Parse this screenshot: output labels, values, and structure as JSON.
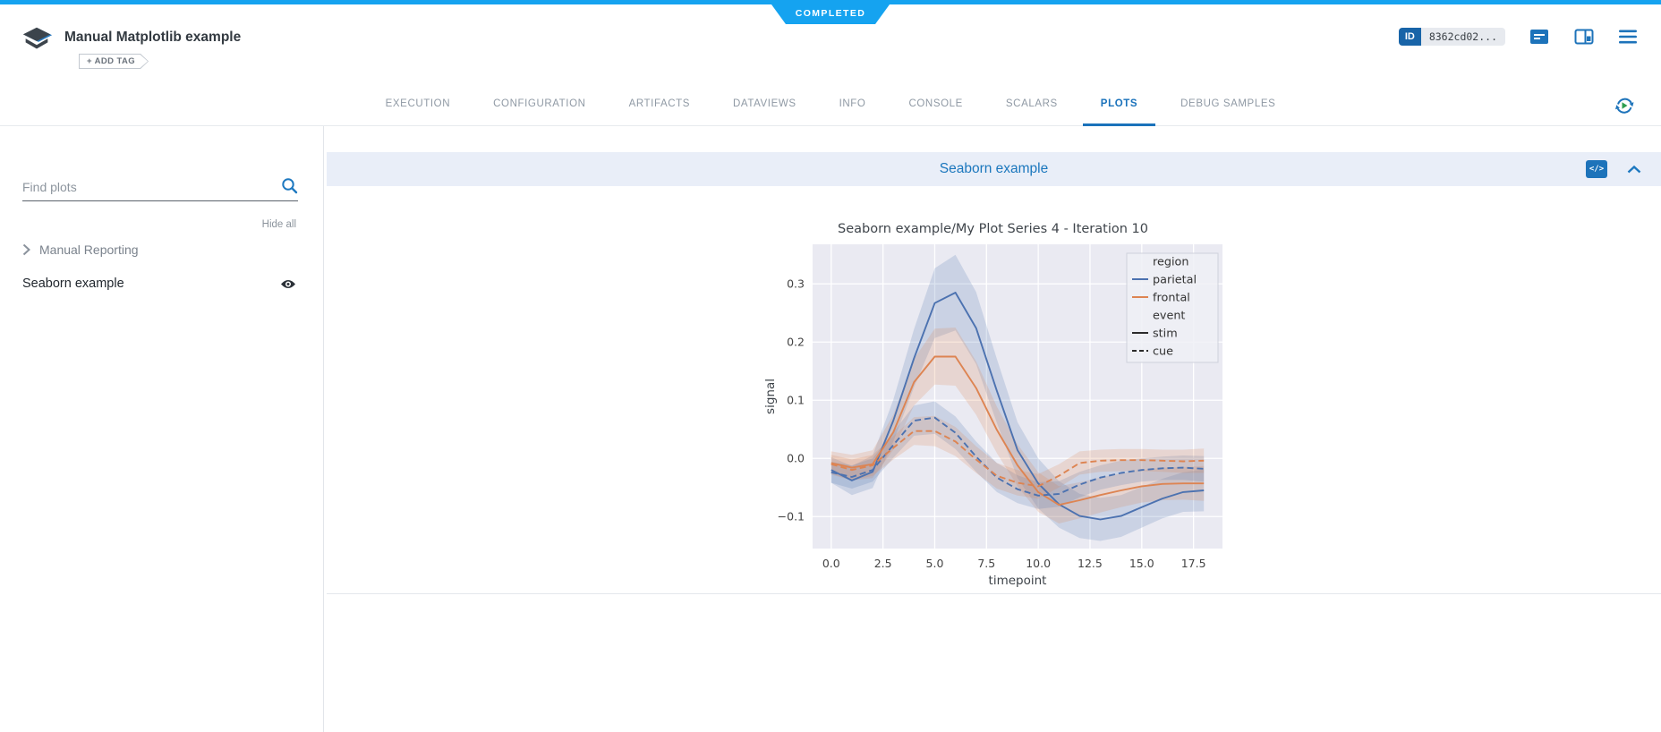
{
  "status_banner": {
    "label": "COMPLETED",
    "color": "#15a3f0"
  },
  "header": {
    "title": "Manual Matplotlib example",
    "add_tag_label": "+ ADD TAG",
    "id_badge": {
      "label": "ID",
      "value": "8362cd02..."
    }
  },
  "tabs": {
    "items": [
      "EXECUTION",
      "CONFIGURATION",
      "ARTIFACTS",
      "DATAVIEWS",
      "INFO",
      "CONSOLE",
      "SCALARS",
      "PLOTS",
      "DEBUG SAMPLES"
    ],
    "active": "PLOTS"
  },
  "sidebar": {
    "search_placeholder": "Find plots",
    "hide_all_label": "Hide all",
    "groups": [
      {
        "label": "Manual Reporting"
      }
    ],
    "items": [
      {
        "label": "Seaborn example",
        "visible": true
      }
    ]
  },
  "plot_section": {
    "title": "Seaborn example"
  },
  "icons": {
    "code_glyph": "</>"
  },
  "colors": {
    "accent_blue": "#1d73ba",
    "status_completed": "#15a3f0",
    "active_tab": "#1a72bb"
  },
  "chart_data": {
    "type": "line",
    "title": "Seaborn example/My Plot Series 4 - Iteration 10",
    "xlabel": "timepoint",
    "ylabel": "signal",
    "background": "#eaeaf2",
    "grid": true,
    "x_ticks": [
      0.0,
      2.5,
      5.0,
      7.5,
      10.0,
      12.5,
      15.0,
      17.5
    ],
    "y_ticks": [
      -0.1,
      0.0,
      0.1,
      0.2,
      0.3
    ],
    "xlim": [
      -0.9,
      18.9
    ],
    "ylim": [
      -0.155,
      0.368
    ],
    "x": [
      0,
      1,
      2,
      3,
      4,
      5,
      6,
      7,
      8,
      9,
      10,
      11,
      12,
      13,
      14,
      15,
      16,
      17,
      18
    ],
    "series": [
      {
        "name": "parietal-stim",
        "color": "#4c72b0",
        "dash": "solid",
        "values": [
          -0.02,
          -0.038,
          -0.023,
          0.065,
          0.172,
          0.267,
          0.285,
          0.224,
          0.116,
          0.014,
          -0.043,
          -0.079,
          -0.099,
          -0.105,
          -0.099,
          -0.084,
          -0.069,
          -0.058,
          -0.055
        ],
        "band": [
          0.022,
          0.025,
          0.028,
          0.036,
          0.05,
          0.06,
          0.065,
          0.062,
          0.055,
          0.048,
          0.043,
          0.04,
          0.038,
          0.037,
          0.036,
          0.035,
          0.034,
          0.034,
          0.036
        ]
      },
      {
        "name": "frontal-stim",
        "color": "#dd8452",
        "dash": "solid",
        "values": [
          -0.008,
          -0.016,
          -0.01,
          0.045,
          0.131,
          0.175,
          0.175,
          0.121,
          0.049,
          -0.012,
          -0.058,
          -0.08,
          -0.072,
          -0.063,
          -0.055,
          -0.048,
          -0.044,
          -0.043,
          -0.043
        ],
        "band": [
          0.02,
          0.022,
          0.024,
          0.03,
          0.04,
          0.048,
          0.05,
          0.046,
          0.04,
          0.036,
          0.034,
          0.032,
          0.031,
          0.03,
          0.029,
          0.028,
          0.028,
          0.028,
          0.03
        ]
      },
      {
        "name": "parietal-cue",
        "color": "#4c72b0",
        "dash": "dashed",
        "values": [
          -0.024,
          -0.032,
          -0.02,
          0.023,
          0.065,
          0.07,
          0.044,
          0.003,
          -0.033,
          -0.053,
          -0.064,
          -0.061,
          -0.045,
          -0.033,
          -0.025,
          -0.02,
          -0.017,
          -0.016,
          -0.018
        ],
        "band": [
          0.018,
          0.02,
          0.02,
          0.022,
          0.026,
          0.028,
          0.028,
          0.026,
          0.025,
          0.024,
          0.023,
          0.022,
          0.022,
          0.021,
          0.021,
          0.02,
          0.02,
          0.021,
          0.022
        ]
      },
      {
        "name": "frontal-cue",
        "color": "#dd8452",
        "dash": "dashed",
        "values": [
          -0.01,
          -0.02,
          -0.012,
          0.018,
          0.047,
          0.047,
          0.029,
          -0.002,
          -0.03,
          -0.042,
          -0.048,
          -0.03,
          -0.008,
          -0.004,
          -0.003,
          -0.003,
          -0.004,
          -0.005,
          -0.004
        ],
        "band": [
          0.016,
          0.018,
          0.018,
          0.02,
          0.024,
          0.026,
          0.025,
          0.023,
          0.022,
          0.022,
          0.021,
          0.02,
          0.02,
          0.019,
          0.019,
          0.019,
          0.019,
          0.02,
          0.021
        ]
      }
    ],
    "legend": {
      "position": "upper right",
      "entries": [
        {
          "label": "region",
          "type": "header"
        },
        {
          "label": "parietal",
          "type": "line",
          "color": "#4c72b0",
          "dash": "solid"
        },
        {
          "label": "frontal",
          "type": "line",
          "color": "#dd8452",
          "dash": "solid"
        },
        {
          "label": "event",
          "type": "header"
        },
        {
          "label": "stim",
          "type": "line",
          "color": "#2b2b2b",
          "dash": "solid"
        },
        {
          "label": "cue",
          "type": "line",
          "color": "#2b2b2b",
          "dash": "dashed"
        }
      ]
    }
  }
}
